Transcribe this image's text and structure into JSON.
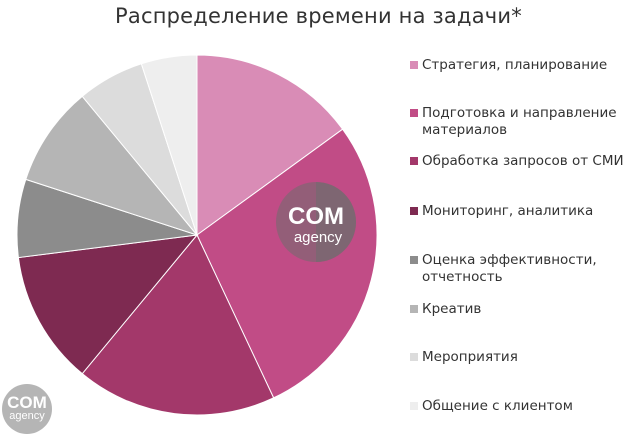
{
  "chart_data": {
    "type": "pie",
    "title": "Распределение времени на задачи*",
    "slices": [
      {
        "label": "Стратегия, планирование",
        "value": 15,
        "color": "#d98cb6"
      },
      {
        "label": "Подготовка и направление материалов",
        "value": 28,
        "color": "#c14c86"
      },
      {
        "label": "Обработка запросов от СМИ",
        "value": 18,
        "color": "#a3386a"
      },
      {
        "label": "Мониторинг, аналитика",
        "value": 12,
        "color": "#7e2a51"
      },
      {
        "label": "Оценка эффективности, отчетность",
        "value": 7,
        "color": "#8c8c8c"
      },
      {
        "label": "Креатив",
        "value": 9,
        "color": "#b5b5b5"
      },
      {
        "label": "Мероприятия",
        "value": 6,
        "color": "#dcdcdc"
      },
      {
        "label": "Общение с клиентом",
        "value": 5,
        "color": "#eeeeee"
      }
    ],
    "legend_position": "right",
    "start_angle_deg": 0,
    "direction": "clockwise"
  },
  "watermark": {
    "main": "COM",
    "sub": "agency"
  }
}
